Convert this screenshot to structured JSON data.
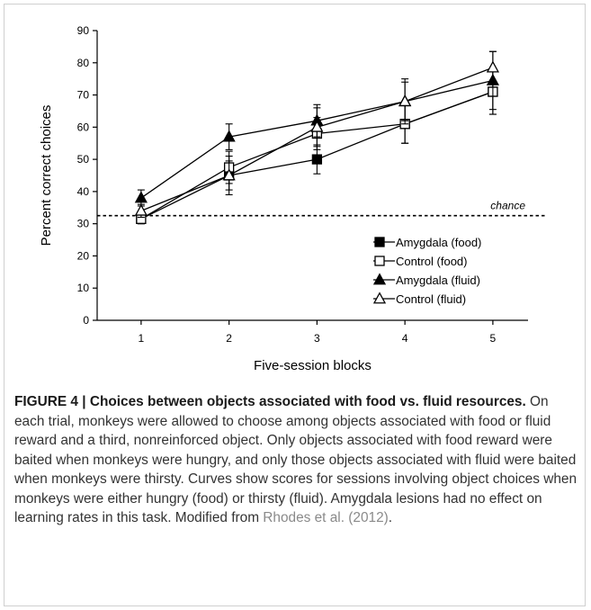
{
  "chart_data": {
    "type": "line",
    "x": [
      1,
      2,
      3,
      4,
      5
    ],
    "xticks": [
      "1",
      "2",
      "3",
      "4",
      "5"
    ],
    "yticks": [
      "0",
      "10",
      "20",
      "30",
      "40",
      "50",
      "60",
      "70",
      "80",
      "90"
    ],
    "xlim": [
      0.5,
      5.4
    ],
    "ylim": [
      0,
      90
    ],
    "xlabel": "Five-session blocks",
    "ylabel": "Percent correct choices",
    "chance": {
      "value": 32.5,
      "label": "chance"
    },
    "legend_position": "bottom-right",
    "series": [
      {
        "name": "Amygdala (food)",
        "marker": "square",
        "filled": true,
        "values": [
          31.5,
          45,
          50,
          61,
          71
        ],
        "errors": [
          1.5,
          4.5,
          4.5,
          6,
          7
        ]
      },
      {
        "name": "Control (food)",
        "marker": "square",
        "filled": false,
        "values": [
          31.5,
          47.5,
          58,
          61,
          71
        ],
        "errors": [
          1.5,
          5,
          5,
          6,
          7
        ]
      },
      {
        "name": "Amygdala (fluid)",
        "marker": "triangle",
        "filled": true,
        "values": [
          38,
          57,
          62,
          68,
          74.5
        ],
        "errors": [
          2.5,
          4,
          5,
          7,
          9
        ]
      },
      {
        "name": "Control (fluid)",
        "marker": "triangle",
        "filled": false,
        "values": [
          34,
          45,
          60,
          68,
          78.5
        ],
        "errors": [
          2,
          6,
          6,
          6,
          5
        ]
      }
    ]
  },
  "caption": {
    "title": "FIGURE 4 | Choices between objects associated with food vs. fluid resources.",
    "body": " On each trial, monkeys were allowed to choose among objects associated with food or fluid reward and a third, nonreinforced object. Only objects associated with food reward were baited when monkeys were hungry, and only those objects associated with fluid were baited when monkeys were thirsty. Curves show scores for sessions involving object choices when monkeys were either hungry (food) or thirsty (fluid). Amygdala lesions had no effect on learning rates in this task. Modified from ",
    "reference": "Rhodes et al. (2012)",
    "end": "."
  }
}
